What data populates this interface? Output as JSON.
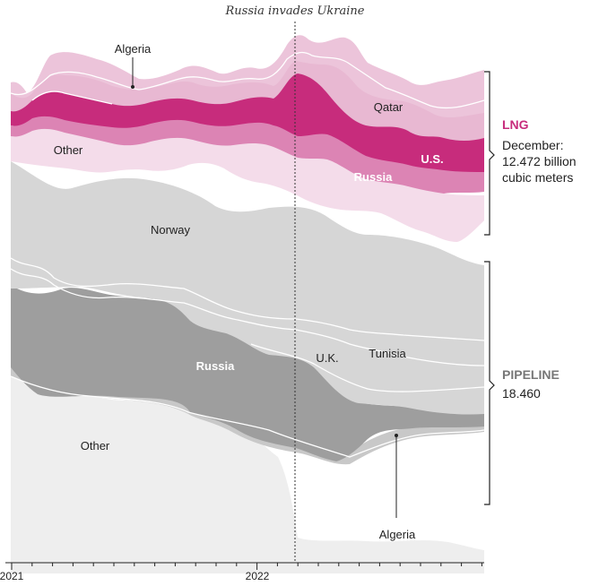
{
  "chart_data": {
    "type": "area",
    "annotation": "Russia invades Ukraine",
    "x_ticks": [
      "2021",
      "2022"
    ],
    "groups": [
      {
        "title": "LNG",
        "body_line1": "December:",
        "body_line2": "12.472 billion",
        "body_line3": "cubic meters",
        "color": "#c72c7c"
      },
      {
        "title": "PIPELINE",
        "body_line1": "18.460",
        "color": "#777777"
      }
    ],
    "labels": {
      "lng_algeria": "Algeria",
      "lng_qatar": "Qatar",
      "lng_other": "Other",
      "lng_us": "U.S.",
      "lng_russia": "Russia",
      "pipe_norway": "Norway",
      "pipe_russia": "Russia",
      "pipe_uk": "U.K.",
      "pipe_tunisia": "Tunisia",
      "pipe_other": "Other",
      "pipe_algeria": "Algeria"
    },
    "colors": {
      "lng_other": "#f4dcea",
      "lng_russia": "#dc84b4",
      "lng_us": "#c72c7c",
      "lng_qatar": "#e8b8d2",
      "lng_algeria": "#ecc4da",
      "pipe_norway": "#d6d6d6",
      "pipe_other_top": "#dcdcdc",
      "pipe_russia": "#9e9e9e",
      "pipe_algeria": "#c8c8c8",
      "pipe_other": "#eeeeee"
    }
  }
}
